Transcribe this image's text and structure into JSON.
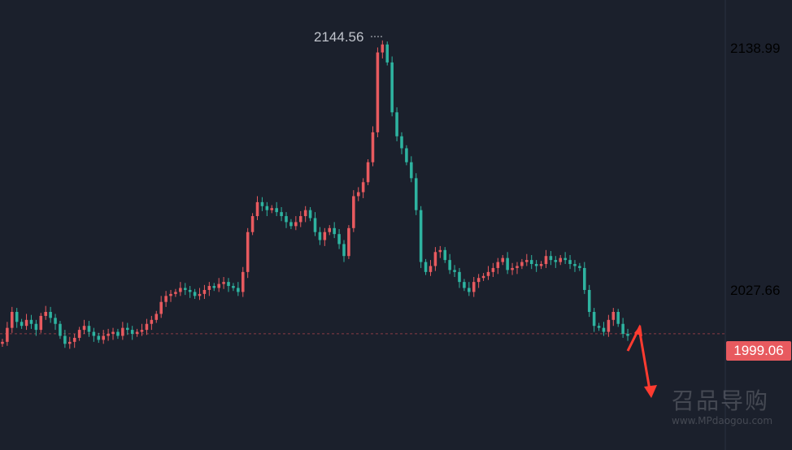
{
  "colors": {
    "background": "#1b202c",
    "up": "#e85a5f",
    "down": "#2eb3a0",
    "axis_text": "#e85a5f",
    "peak_text": "#c0c4cc",
    "dashed_line": "#8a3a44",
    "arrow": "#ff3b30"
  },
  "chart_data": {
    "type": "candlestick",
    "price_axis": {
      "labels": [
        "2138.99",
        "2027.66"
      ]
    },
    "current_price": "1999.06",
    "peak_label": "2144.56",
    "ylim": [
      1975,
      2150
    ],
    "grid": false,
    "close": [
      1995,
      2002,
      2010,
      2005,
      2003,
      2006,
      2004,
      2001,
      2008,
      2010,
      2007,
      2004,
      1998,
      1994,
      1995,
      1997,
      2001,
      2003,
      2000,
      1998,
      1996,
      1998,
      1999,
      2000,
      1998,
      2002,
      2001,
      1999,
      2000,
      2001,
      2004,
      2006,
      2009,
      2015,
      2018,
      2019,
      2020,
      2022,
      2021,
      2020,
      2018,
      2019,
      2021,
      2023,
      2022,
      2024,
      2025,
      2023,
      2022,
      2020,
      2030,
      2050,
      2058,
      2065,
      2063,
      2061,
      2062,
      2060,
      2058,
      2055,
      2053,
      2055,
      2058,
      2061,
      2057,
      2050,
      2046,
      2050,
      2052,
      2049,
      2044,
      2038,
      2052,
      2068,
      2070,
      2075,
      2085,
      2100,
      2140,
      2144,
      2135,
      2110,
      2098,
      2092,
      2085,
      2077,
      2061,
      2035,
      2030,
      2033,
      2040,
      2041,
      2036,
      2031,
      2030,
      2025,
      2022,
      2020,
      2025,
      2027,
      2028,
      2030,
      2032,
      2035,
      2037,
      2031,
      2032,
      2033,
      2035,
      2036,
      2034,
      2033,
      2034,
      2038,
      2036,
      2035,
      2037,
      2036,
      2034,
      2033,
      2032,
      2021,
      2010,
      2003,
      2002,
      2000,
      2006,
      2010,
      2004,
      1999,
      1998
    ],
    "annotation": "red zigzag arrow: up then down"
  },
  "watermark": {
    "logo_text": "召品导购",
    "url": "www.MPdaogou.com"
  }
}
